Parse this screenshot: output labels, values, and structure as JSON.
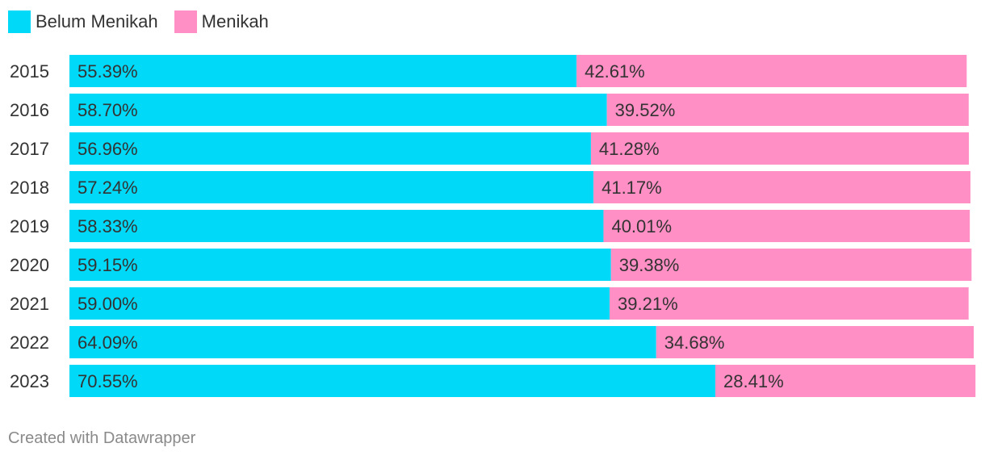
{
  "chart_data": {
    "type": "bar",
    "orientation": "horizontal",
    "stacked": true,
    "categories": [
      "2015",
      "2016",
      "2017",
      "2018",
      "2019",
      "2020",
      "2021",
      "2022",
      "2023"
    ],
    "series": [
      {
        "name": "Belum Menikah",
        "color": "#00d9f7",
        "values": [
          55.39,
          58.7,
          56.96,
          57.24,
          58.33,
          59.15,
          59.0,
          64.09,
          70.55
        ],
        "labels": [
          "55.39%",
          "58.70%",
          "56.96%",
          "57.24%",
          "58.33%",
          "59.15%",
          "59.00%",
          "64.09%",
          "70.55%"
        ]
      },
      {
        "name": "Menikah",
        "color": "#ff8fc4",
        "values": [
          42.61,
          39.52,
          41.28,
          41.17,
          40.01,
          39.38,
          39.21,
          34.68,
          28.41
        ],
        "labels": [
          "42.61%",
          "39.52%",
          "41.28%",
          "41.17%",
          "40.01%",
          "39.38%",
          "39.21%",
          "34.68%",
          "28.41%"
        ]
      }
    ],
    "xlim": [
      0,
      100
    ],
    "legend": "top-left",
    "grid": false
  },
  "legend": {
    "items": [
      {
        "label": "Belum Menikah",
        "color": "#00d9f7"
      },
      {
        "label": "Menikah",
        "color": "#ff8fc4"
      }
    ]
  },
  "footer": {
    "credit": "Created with Datawrapper"
  }
}
